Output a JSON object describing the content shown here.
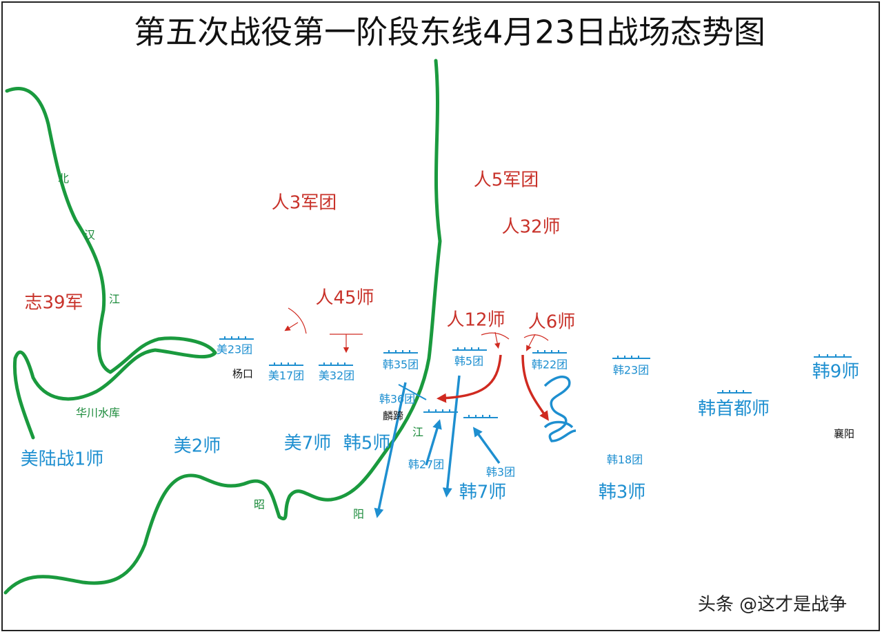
{
  "title": "第五次战役第一阶段东线4月23日战场态势图",
  "rivers": [
    "北",
    "汉",
    "江",
    "华川水库",
    "昭",
    "阳",
    "江"
  ],
  "cpv_units": [
    "人3军团",
    "人5军团",
    "人32师",
    "志39军",
    "人45师",
    "人12师",
    "人6师"
  ],
  "un_units": [
    "美23团",
    "美17团",
    "美32团",
    "韩35团",
    "韩5团",
    "韩22团",
    "韩23团",
    "韩9师",
    "韩36团",
    "韩首都师",
    "美陆战1师",
    "美2师",
    "美7师",
    "韩5师",
    "韩27团",
    "韩3团",
    "韩18团",
    "韩7师",
    "韩3师"
  ],
  "places": [
    "杨口",
    "麟蹄",
    "襄阳"
  ],
  "watermark": "头条 @这才是战争"
}
